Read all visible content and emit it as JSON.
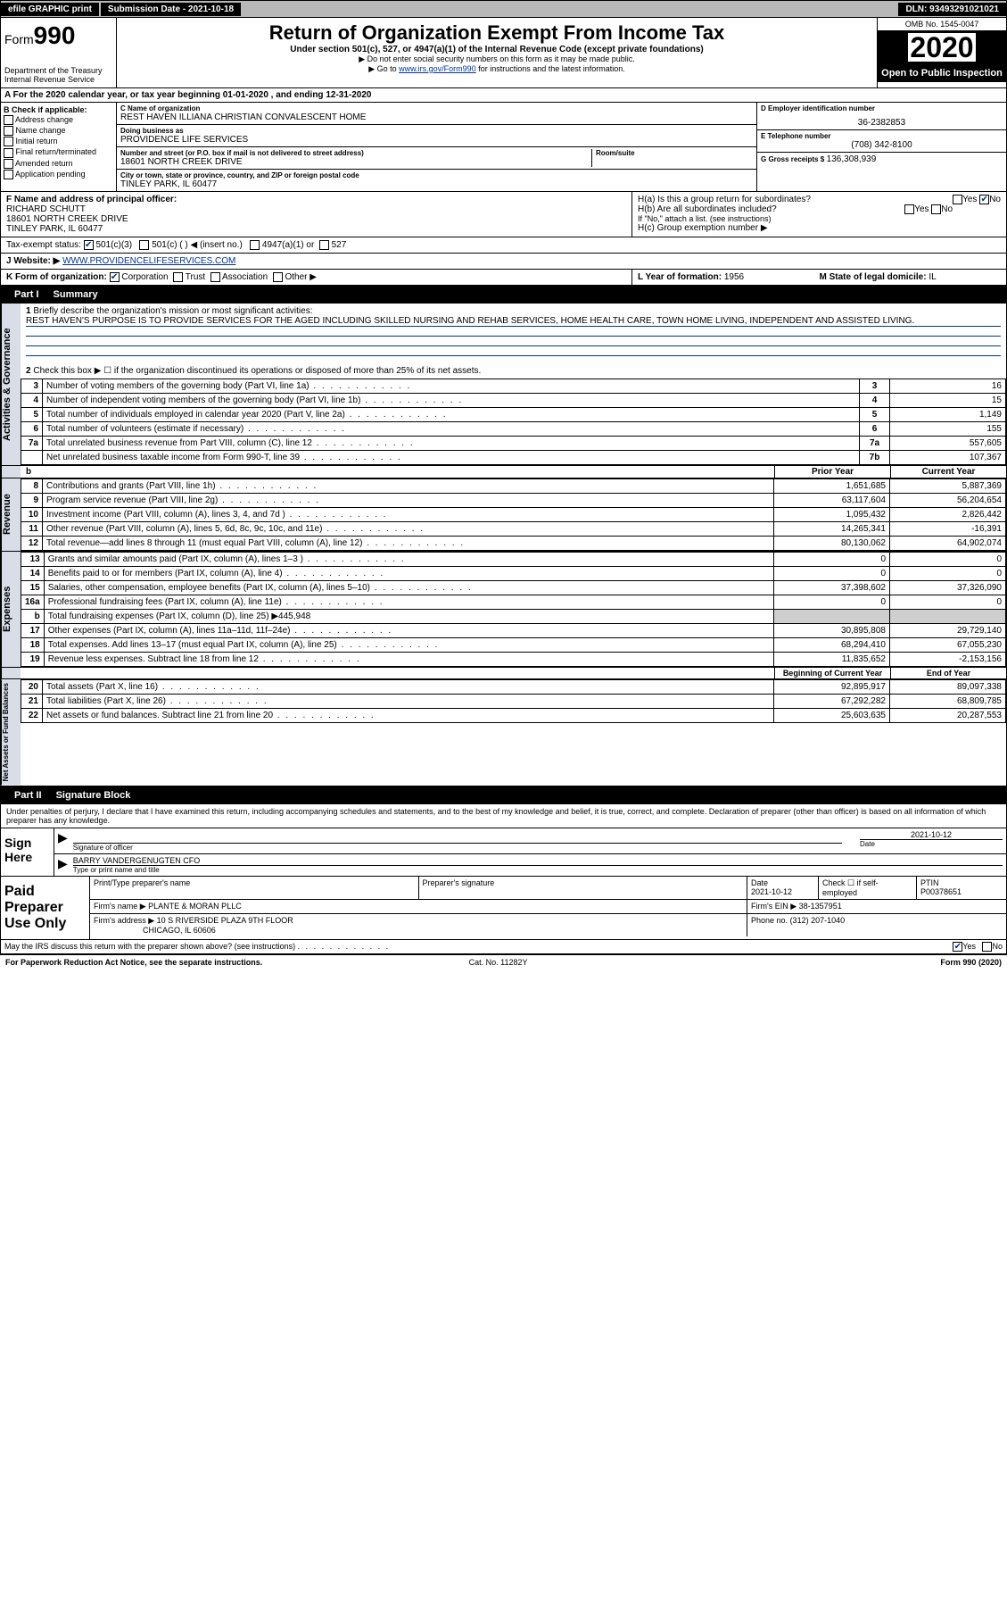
{
  "topbar": {
    "efile": "efile GRAPHIC print",
    "submission": "Submission Date - 2021-10-18",
    "dln": "DLN: 93493291021021"
  },
  "header": {
    "form_word": "Form",
    "form_num": "990",
    "dept": "Department of the Treasury\nInternal Revenue Service",
    "title": "Return of Organization Exempt From Income Tax",
    "sub": "Under section 501(c), 527, or 4947(a)(1) of the Internal Revenue Code (except private foundations)",
    "note1": "▶ Do not enter social security numbers on this form as it may be made public.",
    "note2_pre": "▶ Go to ",
    "note2_link": "www.irs.gov/Form990",
    "note2_post": " for instructions and the latest information.",
    "omb": "OMB No. 1545-0047",
    "year": "2020",
    "inspect": "Open to Public Inspection"
  },
  "period": "A For the 2020 calendar year, or tax year beginning 01-01-2020   , and ending 12-31-2020",
  "boxB": {
    "label": "B Check if applicable:",
    "opts": [
      "Address change",
      "Name change",
      "Initial return",
      "Final return/terminated",
      "Amended return",
      "Application pending"
    ]
  },
  "boxC": {
    "name_lab": "C Name of organization",
    "name": "REST HAVEN ILLIANA CHRISTIAN CONVALESCENT HOME",
    "dba_lab": "Doing business as",
    "dba": "PROVIDENCE LIFE SERVICES",
    "addr_lab": "Number and street (or P.O. box if mail is not delivered to street address)",
    "room_lab": "Room/suite",
    "addr": "18601 NORTH CREEK DRIVE",
    "city_lab": "City or town, state or province, country, and ZIP or foreign postal code",
    "city": "TINLEY PARK, IL  60477"
  },
  "boxD": {
    "lab": "D Employer identification number",
    "val": "36-2382853"
  },
  "boxE": {
    "lab": "E Telephone number",
    "val": "(708) 342-8100"
  },
  "boxG": {
    "lab": "G Gross receipts $",
    "val": "136,308,939"
  },
  "boxF": {
    "lab": "F  Name and address of principal officer:",
    "name": "RICHARD SCHUTT",
    "addr1": "18601 NORTH CREEK DRIVE",
    "addr2": "TINLEY PARK, IL  60477"
  },
  "boxH": {
    "a": "H(a)  Is this a group return for subordinates?",
    "b": "H(b)  Are all subordinates included?",
    "bnote": "If \"No,\" attach a list. (see instructions)",
    "c": "H(c)  Group exemption number ▶",
    "yes": "Yes",
    "no": "No"
  },
  "taxExempt": {
    "lab": "Tax-exempt status:",
    "o1": "501(c)(3)",
    "o2": "501(c) (  ) ◀ (insert no.)",
    "o3": "4947(a)(1) or",
    "o4": "527"
  },
  "boxJ": {
    "lab": "J   Website: ▶",
    "val": "WWW.PROVIDENCELIFESERVICES.COM"
  },
  "boxK": {
    "lab": "K Form of organization:",
    "o1": "Corporation",
    "o2": "Trust",
    "o3": "Association",
    "o4": "Other ▶"
  },
  "boxL": {
    "lab": "L Year of formation:",
    "val": "1956"
  },
  "boxM": {
    "lab": "M State of legal domicile:",
    "val": "IL"
  },
  "part1": {
    "tab": "Part I",
    "title": "Summary"
  },
  "summary": {
    "l1": "Briefly describe the organization's mission or most significant activities:",
    "mission": "REST HAVEN'S PURPOSE IS TO PROVIDE SERVICES FOR THE AGED INCLUDING SKILLED NURSING AND REHAB SERVICES, HOME HEALTH CARE, TOWN HOME LIVING, INDEPENDENT AND ASSISTED LIVING.",
    "l2": "Check this box ▶ ☐ if the organization discontinued its operations or disposed of more than 25% of its net assets.",
    "rows_ag": [
      {
        "n": "3",
        "d": "Number of voting members of the governing body (Part VI, line 1a)",
        "box": "3",
        "v": "16"
      },
      {
        "n": "4",
        "d": "Number of independent voting members of the governing body (Part VI, line 1b)",
        "box": "4",
        "v": "15"
      },
      {
        "n": "5",
        "d": "Total number of individuals employed in calendar year 2020 (Part V, line 2a)",
        "box": "5",
        "v": "1,149"
      },
      {
        "n": "6",
        "d": "Total number of volunteers (estimate if necessary)",
        "box": "6",
        "v": "155"
      },
      {
        "n": "7a",
        "d": "Total unrelated business revenue from Part VIII, column (C), line 12",
        "box": "7a",
        "v": "557,605"
      },
      {
        "n": "",
        "d": "Net unrelated business taxable income from Form 990-T, line 39",
        "box": "7b",
        "v": "107,367"
      }
    ],
    "col_prior": "Prior Year",
    "col_curr": "Current Year",
    "rev": [
      {
        "n": "8",
        "d": "Contributions and grants (Part VIII, line 1h)",
        "p": "1,651,685",
        "c": "5,887,369"
      },
      {
        "n": "9",
        "d": "Program service revenue (Part VIII, line 2g)",
        "p": "63,117,604",
        "c": "56,204,654"
      },
      {
        "n": "10",
        "d": "Investment income (Part VIII, column (A), lines 3, 4, and 7d )",
        "p": "1,095,432",
        "c": "2,826,442"
      },
      {
        "n": "11",
        "d": "Other revenue (Part VIII, column (A), lines 5, 6d, 8c, 9c, 10c, and 11e)",
        "p": "14,265,341",
        "c": "-16,391"
      },
      {
        "n": "12",
        "d": "Total revenue—add lines 8 through 11 (must equal Part VIII, column (A), line 12)",
        "p": "80,130,062",
        "c": "64,902,074"
      }
    ],
    "exp": [
      {
        "n": "13",
        "d": "Grants and similar amounts paid (Part IX, column (A), lines 1–3 )",
        "p": "0",
        "c": "0"
      },
      {
        "n": "14",
        "d": "Benefits paid to or for members (Part IX, column (A), line 4)",
        "p": "0",
        "c": "0"
      },
      {
        "n": "15",
        "d": "Salaries, other compensation, employee benefits (Part IX, column (A), lines 5–10)",
        "p": "37,398,602",
        "c": "37,326,090"
      },
      {
        "n": "16a",
        "d": "Professional fundraising fees (Part IX, column (A), line 11e)",
        "p": "0",
        "c": "0"
      },
      {
        "n": "b",
        "d": "Total fundraising expenses (Part IX, column (D), line 25) ▶445,948",
        "p": "",
        "c": "",
        "shade": true
      },
      {
        "n": "17",
        "d": "Other expenses (Part IX, column (A), lines 11a–11d, 11f–24e)",
        "p": "30,895,808",
        "c": "29,729,140"
      },
      {
        "n": "18",
        "d": "Total expenses. Add lines 13–17 (must equal Part IX, column (A), line 25)",
        "p": "68,294,410",
        "c": "67,055,230"
      },
      {
        "n": "19",
        "d": "Revenue less expenses. Subtract line 18 from line 12",
        "p": "11,835,652",
        "c": "-2,153,156"
      }
    ],
    "na_hdr_p": "Beginning of Current Year",
    "na_hdr_c": "End of Year",
    "na": [
      {
        "n": "20",
        "d": "Total assets (Part X, line 16)",
        "p": "92,895,917",
        "c": "89,097,338"
      },
      {
        "n": "21",
        "d": "Total liabilities (Part X, line 26)",
        "p": "67,292,282",
        "c": "68,809,785"
      },
      {
        "n": "22",
        "d": "Net assets or fund balances. Subtract line 21 from line 20",
        "p": "25,603,635",
        "c": "20,287,553"
      }
    ],
    "side_ag": "Activities & Governance",
    "side_rev": "Revenue",
    "side_exp": "Expenses",
    "side_na": "Net Assets or Fund Balances",
    "b_marker": "b"
  },
  "part2": {
    "tab": "Part II",
    "title": "Signature Block"
  },
  "sig": {
    "decl": "Under penalties of perjury, I declare that I have examined this return, including accompanying schedules and statements, and to the best of my knowledge and belief, it is true, correct, and complete. Declaration of preparer (other than officer) is based on all information of which preparer has any knowledge.",
    "sign_here": "Sign Here",
    "sig_of_officer": "Signature of officer",
    "date_lab": "Date",
    "date": "2021-10-12",
    "name": "BARRY VANDERGENUGTEN CFO",
    "name_lab": "Type or print name and title"
  },
  "paid": {
    "label": "Paid Preparer Use Only",
    "h1": "Print/Type preparer's name",
    "h2": "Preparer's signature",
    "h3": "Date",
    "date": "2021-10-12",
    "h4": "Check ☐ if self-employed",
    "h5": "PTIN",
    "ptin": "P00378651",
    "firm_lab": "Firm's name    ▶",
    "firm": "PLANTE & MORAN PLLC",
    "ein_lab": "Firm's EIN ▶",
    "ein": "38-1357951",
    "addr_lab": "Firm's address ▶",
    "addr1": "10 S RIVERSIDE PLAZA 9TH FLOOR",
    "addr2": "CHICAGO, IL  60606",
    "phone_lab": "Phone no.",
    "phone": "(312) 207-1040"
  },
  "discuss": {
    "q": "May the IRS discuss this return with the preparer shown above? (see instructions)",
    "yes": "Yes",
    "no": "No"
  },
  "footer": {
    "left": "For Paperwork Reduction Act Notice, see the separate instructions.",
    "mid": "Cat. No. 11282Y",
    "right": "Form 990 (2020)"
  },
  "colors": {
    "link": "#003399",
    "shade": "#cfcfcf",
    "side": "#d8dde8"
  }
}
